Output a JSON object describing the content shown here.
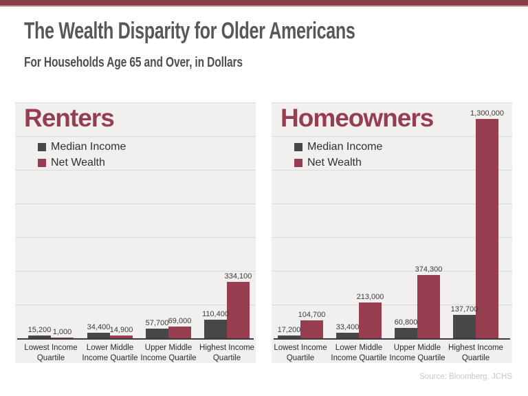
{
  "page": {
    "title": "The Wealth Disparity for Older Americans",
    "subtitle": "For Households Age 65 and Over, in Dollars",
    "source": "Source: Bloomberg, JCHS"
  },
  "colors": {
    "top_band": "#8a3d48",
    "top_band_edge": "#c9a3a8",
    "title_text": "#57585b",
    "subtitle_text": "#4e4f52",
    "heading_text": "#963d4f",
    "median_income": "#474747",
    "net_wealth": "#963d4f",
    "panel_bg": "#f1f0ee",
    "gridline": "#dcdad7",
    "axis": "#3b3b3b"
  },
  "chart_data": [
    {
      "type": "bar",
      "title": "Renters",
      "categories": [
        "Lowest Income\nQuartile",
        "Lower Middle\nIncome Quartile",
        "Upper Middle\nIncome Quartile",
        "Highest Income\nQuartile"
      ],
      "series": [
        {
          "name": "Median Income",
          "color": "#474747",
          "values": [
            15200,
            34400,
            57700,
            110400
          ],
          "labels": [
            "15,200",
            "34,400",
            "57,700",
            "110,400"
          ]
        },
        {
          "name": "Net Wealth",
          "color": "#963d4f",
          "values": [
            1000,
            14900,
            69000,
            334100
          ],
          "labels": [
            "1,000",
            "14,900",
            "69,000",
            "334,100"
          ]
        }
      ],
      "ylabel": "",
      "xlabel": "",
      "ylim": [
        0,
        1400000
      ],
      "grid_step": 200000,
      "grid": true,
      "legend_position": "top-left"
    },
    {
      "type": "bar",
      "title": "Homeowners",
      "categories": [
        "Lowest Income\nQuartile",
        "Lower Middle\nIncome Quartile",
        "Upper Middle\nIncome Quartile",
        "Highest Income\nQuartile"
      ],
      "series": [
        {
          "name": "Median Income",
          "color": "#474747",
          "values": [
            17200,
            33400,
            60800,
            137700
          ],
          "labels": [
            "17,200",
            "33,400",
            "60,800",
            "137,700"
          ]
        },
        {
          "name": "Net Wealth",
          "color": "#963d4f",
          "values": [
            104700,
            213000,
            374300,
            1300000
          ],
          "labels": [
            "104,700",
            "213,000",
            "374,300",
            "1,300,000"
          ]
        }
      ],
      "ylabel": "",
      "xlabel": "",
      "ylim": [
        0,
        1400000
      ],
      "grid_step": 200000,
      "grid": true,
      "legend_position": "top-left"
    }
  ]
}
